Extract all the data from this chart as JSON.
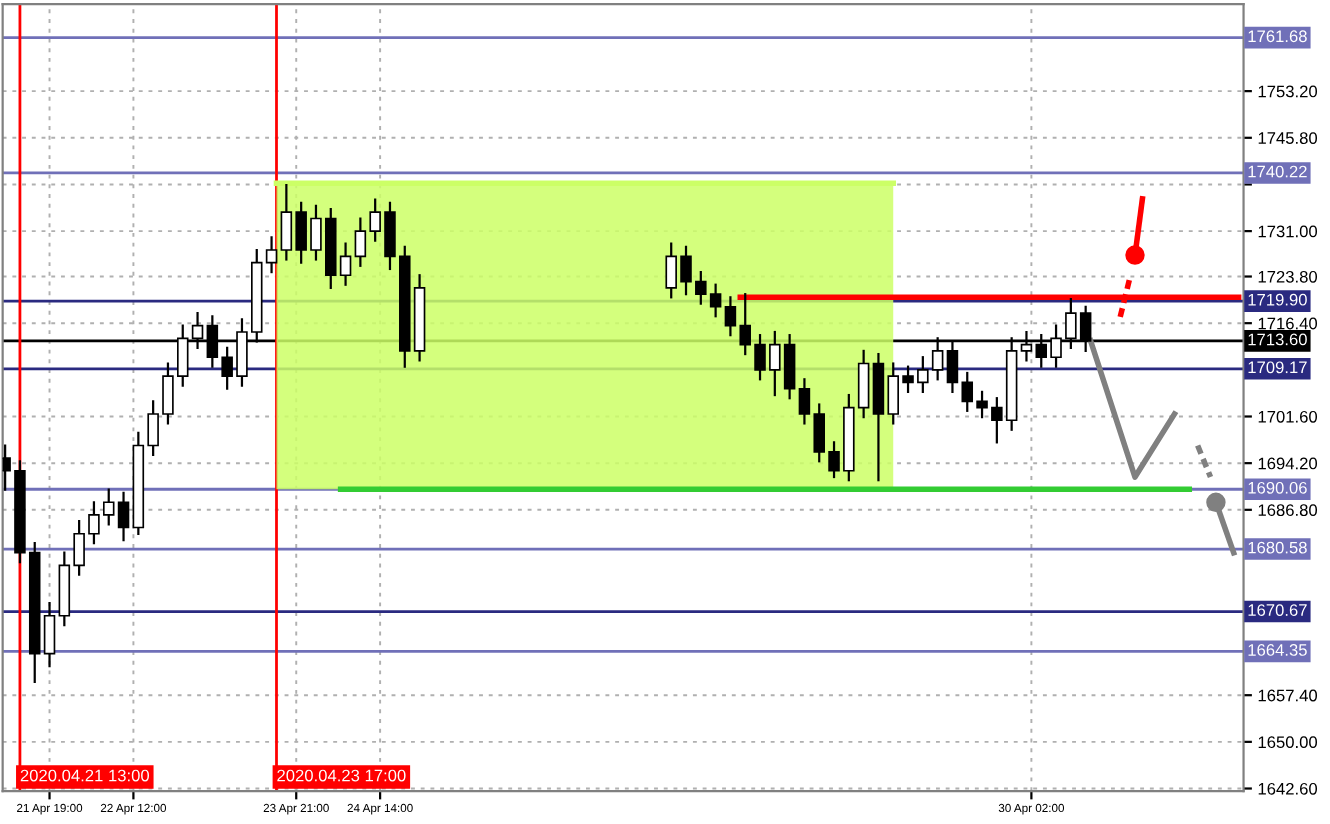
{
  "chart_data": {
    "type": "candlestick",
    "x": [
      "2020-04-21T10:00",
      "2020-04-21T13:00",
      "2020-04-21T16:00",
      "2020-04-21T19:00",
      "2020-04-21T22:00",
      "2020-04-22T01:00",
      "2020-04-22T04:00",
      "2020-04-22T07:00",
      "2020-04-22T10:00",
      "2020-04-22T13:00",
      "2020-04-22T16:00",
      "2020-04-22T19:00",
      "2020-04-22T22:00",
      "2020-04-23T01:00",
      "2020-04-23T04:00",
      "2020-04-23T07:00",
      "2020-04-23T10:00",
      "2020-04-23T13:00",
      "2020-04-23T16:00",
      "2020-04-23T19:00",
      "2020-04-23T22:00",
      "2020-04-24T01:00",
      "2020-04-24T04:00",
      "2020-04-24T07:00",
      "2020-04-24T10:00",
      "2020-04-24T13:00",
      "2020-04-24T16:00",
      "2020-04-24T19:00",
      "2020-04-24T22:00",
      "2020-04-27T01:00",
      "2020-04-27T04:00",
      "2020-04-27T07:00",
      "2020-04-27T10:00",
      "2020-04-27T13:00",
      "2020-04-27T16:00",
      "2020-04-27T19:00",
      "2020-04-27T22:00",
      "2020-04-28T01:00",
      "2020-04-28T04:00",
      "2020-04-28T07:00",
      "2020-04-28T10:00",
      "2020-04-28T13:00",
      "2020-04-28T16:00",
      "2020-04-28T19:00",
      "2020-04-28T22:00",
      "2020-04-29T01:00",
      "2020-04-29T04:00",
      "2020-04-29T07:00",
      "2020-04-29T10:00",
      "2020-04-29T13:00",
      "2020-04-29T16:00",
      "2020-04-29T19:00",
      "2020-04-29T22:00",
      "2020-04-30T01:00",
      "2020-04-30T04:00",
      "2020-04-30T07:00",
      "2020-04-30T10:00",
      "2020-04-30T13:00"
    ],
    "ohlc": [
      [
        1695,
        1697,
        1690,
        1693
      ],
      [
        1693,
        1694.5,
        1678.5,
        1680
      ],
      [
        1680,
        1681.5,
        1659.5,
        1664
      ],
      [
        1664,
        1672,
        1662,
        1670
      ],
      [
        1670,
        1680,
        1668.5,
        1678
      ],
      [
        1678,
        1685,
        1676.5,
        1683
      ],
      [
        1683,
        1688,
        1681.5,
        1686
      ],
      [
        1686,
        1690,
        1684.5,
        1688
      ],
      [
        1688,
        1689.5,
        1682,
        1684
      ],
      [
        1684,
        1699,
        1683,
        1697
      ],
      [
        1697,
        1704,
        1695.5,
        1702
      ],
      [
        1702,
        1710,
        1700.5,
        1708
      ],
      [
        1708,
        1716,
        1706.5,
        1714
      ],
      [
        1714,
        1718,
        1712.5,
        1716
      ],
      [
        1716,
        1717.5,
        1709.5,
        1711
      ],
      [
        1711,
        1712.5,
        1706,
        1708
      ],
      [
        1708,
        1717,
        1706.5,
        1715
      ],
      [
        1715,
        1728,
        1713.5,
        1726
      ],
      [
        1726,
        1730,
        1724.5,
        1728
      ],
      [
        1728,
        1738.3,
        1726.5,
        1734
      ],
      [
        1734,
        1735.5,
        1726,
        1728
      ],
      [
        1728,
        1735,
        1726.5,
        1733
      ],
      [
        1733,
        1734.5,
        1722,
        1724
      ],
      [
        1724,
        1729,
        1722.5,
        1727
      ],
      [
        1727,
        1733,
        1725.5,
        1731
      ],
      [
        1731,
        1736,
        1729.5,
        1734
      ],
      [
        1734,
        1735.5,
        1725,
        1727
      ],
      [
        1727,
        1728.5,
        1709.5,
        1712
      ],
      [
        1712,
        1724,
        1710.5,
        1722
      ],
      [
        1722,
        1729,
        1720.5,
        1727
      ],
      [
        1727,
        1728.5,
        1721,
        1723
      ],
      [
        1723,
        1724.5,
        1719.5,
        1721
      ],
      [
        1721,
        1722.5,
        1717.5,
        1719
      ],
      [
        1719,
        1720.5,
        1714.5,
        1716
      ],
      [
        1716,
        1721,
        1711.5,
        1713
      ],
      [
        1713,
        1714.5,
        1707.5,
        1709
      ],
      [
        1709,
        1715,
        1705,
        1713
      ],
      [
        1713,
        1714.5,
        1704.5,
        1706
      ],
      [
        1706,
        1707.5,
        1700.5,
        1702
      ],
      [
        1702,
        1703.5,
        1694.5,
        1696
      ],
      [
        1696,
        1697.5,
        1692,
        1693
      ],
      [
        1693,
        1705,
        1691.5,
        1703
      ],
      [
        1703,
        1712,
        1701.5,
        1710
      ],
      [
        1710,
        1711.5,
        1691.5,
        1702
      ],
      [
        1702,
        1710,
        1700.5,
        1708
      ],
      [
        1708,
        1709.5,
        1705.5,
        1707
      ],
      [
        1707,
        1711,
        1705.5,
        1709
      ],
      [
        1709,
        1714,
        1707.5,
        1712
      ],
      [
        1712,
        1713.5,
        1705.5,
        1707
      ],
      [
        1707,
        1708.5,
        1702.5,
        1704
      ],
      [
        1704,
        1705.5,
        1701.5,
        1703
      ],
      [
        1703,
        1704.5,
        1697.5,
        1701
      ],
      [
        1701,
        1714,
        1699.5,
        1712
      ],
      [
        1712,
        1715,
        1710.5,
        1713
      ],
      [
        1713,
        1714.5,
        1709.5,
        1711
      ],
      [
        1711,
        1716,
        1709.5,
        1714
      ],
      [
        1714,
        1720.2,
        1712.5,
        1718
      ],
      [
        1718,
        1719,
        1712,
        1713.6
      ]
    ],
    "series": [
      {
        "type": "line",
        "x": [
          "2020-04-23T17:00",
          "2020-04-28T22:00"
        ],
        "values": [
          1738.6,
          1738.6
        ],
        "lower": [
          1690.06,
          1690.06
        ],
        "upper": [
          1738.6,
          1738.6
        ],
        "color": "#ccff66"
      },
      {
        "type": "line",
        "x": [
          "2020-04-27T15:00",
          "2020-05-01T20:00"
        ],
        "values": [
          1720.5,
          1720.5
        ],
        "color": "#ff0000"
      },
      {
        "type": "line",
        "x": [
          "2020-04-24T06:00",
          "2020-05-01T10:00"
        ],
        "values": [
          1690.06,
          1690.06
        ],
        "color": "#33cc33"
      },
      {
        "type": "line",
        "x": [
          "2020-04-30T14:00",
          "2020-04-30T23:00",
          "2020-05-01T07:00"
        ],
        "values": [
          1713.6,
          1692,
          1702
        ],
        "color": "#808080"
      },
      {
        "type": "line",
        "x": [
          "2020-05-01T11:42",
          "2020-05-01T14:18"
        ],
        "values": [
          1697,
          1692
        ],
        "color": "#808080",
        "line_style": "dashed"
      },
      {
        "type": "line",
        "x": [
          "2020-05-01T15:24",
          "2020-05-01T19:00"
        ],
        "values": [
          1688,
          1680
        ],
        "color": "#808080",
        "marker": "circle"
      },
      {
        "type": "line",
        "x": [
          "2020-04-30T20:00",
          "2020-04-30T21:54"
        ],
        "values": [
          1717.4,
          1723.4
        ],
        "color": "#ff0000",
        "line_style": "dashed"
      },
      {
        "type": "line",
        "x": [
          "2020-04-30T23:00",
          "2020-05-01T00:30"
        ],
        "values": [
          1727.2,
          1736.1
        ],
        "color": "#ff0000",
        "marker": "circle"
      }
    ],
    "ref_lines": [
      {
        "axis": "y",
        "value": 1761.68,
        "label": "1761.68",
        "color": "#7070b8"
      },
      {
        "axis": "y",
        "value": 1740.22,
        "label": "1740.22",
        "color": "#7070b8"
      },
      {
        "axis": "y",
        "value": 1719.9,
        "label": "1719.90",
        "color": "#2a2a80"
      },
      {
        "axis": "y",
        "value": 1713.6,
        "label": "1713.60",
        "color": "#000000"
      },
      {
        "axis": "y",
        "value": 1709.17,
        "label": "1709.17",
        "color": "#2a2a80"
      },
      {
        "axis": "y",
        "value": 1690.06,
        "label": "1690.06",
        "color": "#7070b8"
      },
      {
        "axis": "y",
        "value": 1680.58,
        "label": "1680.58",
        "color": "#7070b8"
      },
      {
        "axis": "y",
        "value": 1670.67,
        "label": "1670.67",
        "color": "#2a2a80"
      },
      {
        "axis": "y",
        "value": 1664.35,
        "label": "1664.35",
        "color": "#7070b8"
      },
      {
        "axis": "x",
        "value": "2020-04-21T13:00",
        "label": "2020.04.21 13:00",
        "color": "#ff0000"
      },
      {
        "axis": "x",
        "value": "2020-04-23T17:00",
        "label": "2020.04.23 17:00",
        "color": "#ff0000"
      }
    ],
    "xlim": [
      "2020-04-21T09:30",
      "2020-05-01T21:00"
    ],
    "xticks": [
      {
        "value": "2020-04-21T19:00",
        "label": "21 Apr 19:00"
      },
      {
        "value": "2020-04-22T12:00",
        "label": "22 Apr 12:00"
      },
      {
        "value": "2020-04-23T21:00",
        "label": "23 Apr 21:00"
      },
      {
        "value": "2020-04-24T14:00",
        "label": "24 Apr 14:00"
      },
      {
        "value": "2020-04-30T02:00",
        "label": "30 Apr 02:00"
      }
    ],
    "ylim": [
      1642.2,
      1767.0
    ],
    "yticks": [
      {
        "value": 1642.6,
        "label": "1642.60"
      },
      {
        "value": 1650.0,
        "label": "1650.00"
      },
      {
        "value": 1657.4,
        "label": "1657.40"
      },
      {
        "value": 1686.8,
        "label": "1686.80"
      },
      {
        "value": 1694.2,
        "label": "1694.20"
      },
      {
        "value": 1701.6,
        "label": "1701.60"
      },
      {
        "value": 1716.4,
        "label": "1716.40"
      },
      {
        "value": 1723.8,
        "label": "1723.80"
      },
      {
        "value": 1731.0,
        "label": "1731.00"
      },
      {
        "value": 1738.4,
        "label": null
      },
      {
        "value": 1745.8,
        "label": "1745.80"
      },
      {
        "value": 1753.2,
        "label": "1753.20"
      }
    ],
    "grid": true
  }
}
